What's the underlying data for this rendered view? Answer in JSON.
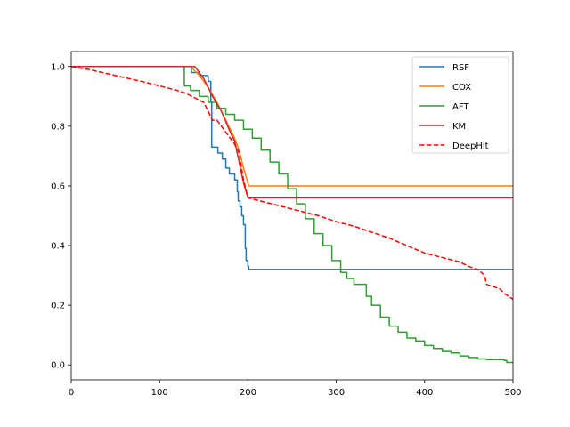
{
  "chart_data": {
    "type": "line",
    "title": "",
    "xlabel": "",
    "ylabel": "",
    "xlim": [
      0,
      500
    ],
    "ylim": [
      -0.05,
      1.05
    ],
    "xticks": [
      0,
      100,
      200,
      300,
      400,
      500
    ],
    "xtick_labels": [
      "0",
      "100",
      "200",
      "300",
      "400",
      "500"
    ],
    "yticks": [
      0.0,
      0.2,
      0.4,
      0.6,
      0.8,
      1.0
    ],
    "ytick_labels": [
      "0.0",
      "0.2",
      "0.4",
      "0.6",
      "0.8",
      "1.0"
    ],
    "grid": false,
    "legend_position": "top-right",
    "series": [
      {
        "name": "RSF",
        "color": "#1f77b4",
        "dash": "solid",
        "step": true,
        "points": [
          [
            0,
            1.0
          ],
          [
            133,
            1.0
          ],
          [
            136,
            0.98
          ],
          [
            140,
            0.98
          ],
          [
            145,
            0.97
          ],
          [
            150,
            0.97
          ],
          [
            155,
            0.95
          ],
          [
            158,
            0.95
          ],
          [
            158,
            0.88
          ],
          [
            159,
            0.73
          ],
          [
            165,
            0.73
          ],
          [
            166,
            0.71
          ],
          [
            170,
            0.71
          ],
          [
            171,
            0.69
          ],
          [
            174,
            0.69
          ],
          [
            175,
            0.66
          ],
          [
            178,
            0.66
          ],
          [
            179,
            0.64
          ],
          [
            184,
            0.64
          ],
          [
            185,
            0.62
          ],
          [
            187,
            0.62
          ],
          [
            188,
            0.58
          ],
          [
            189,
            0.55
          ],
          [
            191,
            0.53
          ],
          [
            193,
            0.5
          ],
          [
            195,
            0.47
          ],
          [
            197,
            0.43
          ],
          [
            197,
            0.39
          ],
          [
            198,
            0.35
          ],
          [
            200,
            0.33
          ],
          [
            201,
            0.32
          ],
          [
            500,
            0.32
          ]
        ]
      },
      {
        "name": "COX",
        "color": "#ff7f0e",
        "dash": "solid",
        "step": false,
        "points": [
          [
            0,
            1.0
          ],
          [
            135,
            1.0
          ],
          [
            145,
            0.97
          ],
          [
            155,
            0.93
          ],
          [
            165,
            0.88
          ],
          [
            175,
            0.82
          ],
          [
            185,
            0.76
          ],
          [
            190,
            0.72
          ],
          [
            195,
            0.66
          ],
          [
            200,
            0.61
          ],
          [
            201,
            0.6
          ],
          [
            500,
            0.6
          ]
        ]
      },
      {
        "name": "AFT",
        "color": "#2ca02c",
        "dash": "solid",
        "step": true,
        "points": [
          [
            0,
            1.0
          ],
          [
            128,
            1.0
          ],
          [
            128,
            0.935
          ],
          [
            135,
            0.92
          ],
          [
            145,
            0.9
          ],
          [
            155,
            0.88
          ],
          [
            165,
            0.86
          ],
          [
            175,
            0.84
          ],
          [
            185,
            0.82
          ],
          [
            195,
            0.79
          ],
          [
            205,
            0.76
          ],
          [
            215,
            0.72
          ],
          [
            225,
            0.68
          ],
          [
            235,
            0.64
          ],
          [
            245,
            0.59
          ],
          [
            255,
            0.54
          ],
          [
            265,
            0.49
          ],
          [
            275,
            0.44
          ],
          [
            285,
            0.4
          ],
          [
            295,
            0.35
          ],
          [
            305,
            0.31
          ],
          [
            312,
            0.29
          ],
          [
            320,
            0.27
          ],
          [
            333,
            0.27
          ],
          [
            334,
            0.23
          ],
          [
            340,
            0.2
          ],
          [
            350,
            0.16
          ],
          [
            360,
            0.13
          ],
          [
            370,
            0.11
          ],
          [
            380,
            0.09
          ],
          [
            390,
            0.08
          ],
          [
            400,
            0.065
          ],
          [
            410,
            0.055
          ],
          [
            420,
            0.045
          ],
          [
            430,
            0.04
          ],
          [
            440,
            0.03
          ],
          [
            450,
            0.025
          ],
          [
            460,
            0.02
          ],
          [
            470,
            0.018
          ],
          [
            480,
            0.018
          ],
          [
            490,
            0.015
          ],
          [
            493,
            0.008
          ],
          [
            500,
            0.005
          ]
        ]
      },
      {
        "name": "KM",
        "color": "#d62728",
        "dash": "solid",
        "step": false,
        "points": [
          [
            0,
            1.0
          ],
          [
            140,
            1.0
          ],
          [
            150,
            0.96
          ],
          [
            160,
            0.9
          ],
          [
            170,
            0.85
          ],
          [
            180,
            0.78
          ],
          [
            185,
            0.75
          ],
          [
            190,
            0.68
          ],
          [
            195,
            0.61
          ],
          [
            200,
            0.56
          ],
          [
            500,
            0.56
          ]
        ]
      },
      {
        "name": "DeepHit",
        "color": "#ff0000",
        "dash": "dashed",
        "step": false,
        "points": [
          [
            0,
            1.0
          ],
          [
            20,
            0.99
          ],
          [
            50,
            0.97
          ],
          [
            80,
            0.95
          ],
          [
            100,
            0.935
          ],
          [
            120,
            0.92
          ],
          [
            130,
            0.91
          ],
          [
            140,
            0.895
          ],
          [
            150,
            0.88
          ],
          [
            155,
            0.85
          ],
          [
            160,
            0.82
          ],
          [
            165,
            0.82
          ],
          [
            170,
            0.8
          ],
          [
            175,
            0.78
          ],
          [
            180,
            0.76
          ],
          [
            185,
            0.74
          ],
          [
            190,
            0.71
          ],
          [
            195,
            0.62
          ],
          [
            200,
            0.56
          ],
          [
            220,
            0.545
          ],
          [
            240,
            0.53
          ],
          [
            260,
            0.515
          ],
          [
            280,
            0.5
          ],
          [
            300,
            0.48
          ],
          [
            320,
            0.465
          ],
          [
            340,
            0.445
          ],
          [
            360,
            0.425
          ],
          [
            380,
            0.4
          ],
          [
            400,
            0.375
          ],
          [
            420,
            0.36
          ],
          [
            440,
            0.345
          ],
          [
            450,
            0.33
          ],
          [
            460,
            0.32
          ],
          [
            468,
            0.3
          ],
          [
            470,
            0.27
          ],
          [
            485,
            0.255
          ],
          [
            490,
            0.24
          ],
          [
            495,
            0.23
          ],
          [
            500,
            0.22
          ]
        ]
      }
    ]
  }
}
